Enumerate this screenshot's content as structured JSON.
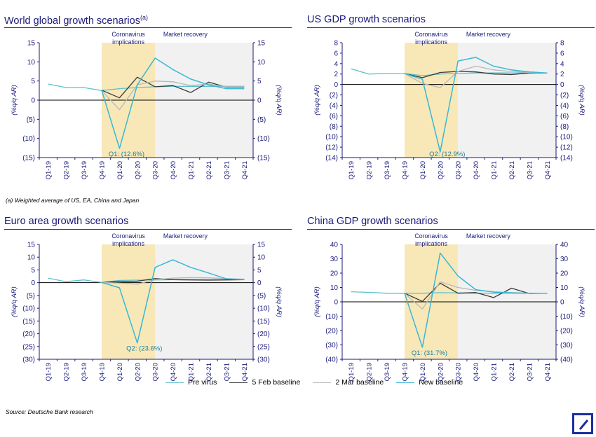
{
  "footnote_a": "(a)    Weighted average of US, EA, China and Japan",
  "source": "Source: Deutsche Bank research",
  "colors": {
    "title": "#1a1a7a",
    "axis": "#1a1a7a",
    "shade_covid": "#f8e8b8",
    "shade_recovery": "#f1f1f1",
    "pre_virus": "#5cc1cc",
    "feb5": "#3a3a3a",
    "mar2": "#b8b8b8",
    "new_baseline": "#37b8d6"
  },
  "legend": [
    {
      "label": "Pre virus",
      "color": "#5cc1cc"
    },
    {
      "label": "5 Feb baseline",
      "color": "#3a3a3a"
    },
    {
      "label": "2 Mar baseline",
      "color": "#b8b8b8"
    },
    {
      "label": "New baseline",
      "color": "#37b8d6"
    }
  ],
  "chart_data": [
    {
      "type": "line",
      "title": "World global growth scenarios",
      "title_sup": "(a)",
      "ylabel": "(%q/q AR)",
      "ylim": [
        -15,
        15
      ],
      "yticks": [
        15,
        10,
        5,
        0,
        -5,
        -10,
        -15
      ],
      "ytick_labels": [
        "15",
        "10",
        "5",
        "0",
        "(5)",
        "(10)",
        "(15)"
      ],
      "categories": [
        "Q1-19",
        "Q2-19",
        "Q3-19",
        "Q4-19",
        "Q1-20",
        "Q2-20",
        "Q3-20",
        "Q4-20",
        "Q1-21",
        "Q2-21",
        "Q3-21",
        "Q4-21"
      ],
      "shade_labels": [
        "Coronavirus\nimplications",
        "Market recovery"
      ],
      "annotation": "Q1: (12.6%)",
      "series": [
        {
          "name": "Pre virus",
          "values": [
            4.2,
            3.3,
            3.3,
            2.5,
            3.0,
            3.3,
            3.5,
            3.6,
            3.6,
            3.6,
            3.6,
            3.6
          ]
        },
        {
          "name": "5 Feb baseline",
          "values": [
            null,
            null,
            null,
            2.6,
            0.6,
            6.0,
            3.5,
            3.8,
            2.0,
            4.7,
            3.4,
            3.4
          ]
        },
        {
          "name": "2 Mar baseline",
          "values": [
            null,
            null,
            null,
            2.5,
            -2.5,
            4.0,
            5.0,
            4.8,
            3.8,
            4.2,
            3.5,
            3.5
          ]
        },
        {
          "name": "New baseline",
          "values": [
            null,
            null,
            null,
            2.6,
            -12.6,
            4.0,
            11.0,
            8.0,
            5.5,
            4.0,
            3.0,
            3.0
          ]
        }
      ]
    },
    {
      "type": "line",
      "title": "US GDP growth scenarios",
      "ylabel": "(%q/q AR)",
      "ylim": [
        -14,
        8
      ],
      "yticks": [
        8,
        6,
        4,
        2,
        0,
        -2,
        -4,
        -6,
        -8,
        -10,
        -12,
        -14
      ],
      "ytick_labels": [
        "8",
        "6",
        "4",
        "2",
        "0",
        "(2)",
        "(4)",
        "(6)",
        "(8)",
        "(10)",
        "(12)",
        "(14)"
      ],
      "categories": [
        "Q1-19",
        "Q2-19",
        "Q3-19",
        "Q4-19",
        "Q1-20",
        "Q2-20",
        "Q3-20",
        "Q4-20",
        "Q1-21",
        "Q2-21",
        "Q3-21",
        "Q4-21"
      ],
      "shade_labels": [
        "Coronavirus\nimplications",
        "Market recovery"
      ],
      "annotation": "Q2: (12.9%)",
      "series": [
        {
          "name": "Pre virus",
          "values": [
            3.0,
            2.0,
            2.1,
            2.1,
            1.7,
            2.0,
            2.1,
            2.2,
            2.2,
            2.2,
            2.2,
            2.2
          ]
        },
        {
          "name": "5 Feb baseline",
          "values": [
            null,
            null,
            null,
            2.1,
            1.3,
            2.3,
            2.5,
            2.4,
            2.0,
            1.9,
            2.2,
            2.2
          ]
        },
        {
          "name": "2 Mar baseline",
          "values": [
            null,
            null,
            null,
            2.1,
            0.2,
            -0.6,
            2.5,
            3.5,
            2.8,
            2.5,
            2.3,
            2.2
          ]
        },
        {
          "name": "New baseline",
          "values": [
            null,
            null,
            null,
            2.1,
            1.0,
            -12.9,
            4.5,
            5.2,
            3.5,
            2.8,
            2.4,
            2.2
          ]
        }
      ]
    },
    {
      "type": "line",
      "title": "Euro area growth scenarios",
      "ylabel": "(%q/q AR)",
      "ylim": [
        -30,
        15
      ],
      "yticks": [
        15,
        10,
        5,
        0,
        -5,
        -10,
        -15,
        -20,
        -25,
        -30
      ],
      "ytick_labels": [
        "15",
        "10",
        "5",
        "0",
        "(5)",
        "(10)",
        "(15)",
        "(20)",
        "(25)",
        "(30)"
      ],
      "categories": [
        "Q1-19",
        "Q2-19",
        "Q3-19",
        "Q4-19",
        "Q1-20",
        "Q2-20",
        "Q3-20",
        "Q4-20",
        "Q1-21",
        "Q2-21",
        "Q3-21",
        "Q4-21"
      ],
      "shade_labels": [
        "Coronavirus\nimplications",
        "Market recovery"
      ],
      "annotation": "Q2: (23.6%)",
      "series": [
        {
          "name": "Pre virus",
          "values": [
            1.8,
            0.4,
            1.1,
            0.1,
            0.9,
            1.0,
            1.1,
            1.2,
            1.2,
            1.2,
            1.2,
            1.2
          ]
        },
        {
          "name": "5 Feb baseline",
          "values": [
            null,
            null,
            null,
            0.1,
            0.5,
            0.6,
            1.6,
            1.2,
            1.1,
            1.0,
            1.1,
            1.2
          ]
        },
        {
          "name": "2 Mar baseline",
          "values": [
            null,
            null,
            null,
            0.1,
            -0.2,
            -0.6,
            1.2,
            1.8,
            2.0,
            1.9,
            1.6,
            1.4
          ]
        },
        {
          "name": "New baseline",
          "values": [
            null,
            null,
            null,
            0.1,
            -2.0,
            -23.6,
            6.0,
            9.0,
            6.0,
            3.8,
            1.5,
            1.2
          ]
        }
      ]
    },
    {
      "type": "line",
      "title": "China GDP growth scenarios",
      "ylabel": "(%q/q AR)",
      "ylim": [
        -40,
        40
      ],
      "yticks": [
        40,
        30,
        20,
        10,
        0,
        -10,
        -20,
        -30,
        -40
      ],
      "ytick_labels": [
        "40",
        "30",
        "20",
        "10",
        "0",
        "(10)",
        "(20)",
        "(30)",
        "(40)"
      ],
      "categories": [
        "Q1-19",
        "Q2-19",
        "Q3-19",
        "Q4-19",
        "Q1-20",
        "Q2-20",
        "Q3-20",
        "Q4-20",
        "Q1-21",
        "Q2-21",
        "Q3-21",
        "Q4-21"
      ],
      "shade_labels": [
        "Coronavirus\nimplications",
        "Market recovery"
      ],
      "annotation": "Q1: (31.7%)",
      "series": [
        {
          "name": "Pre virus",
          "values": [
            7.0,
            6.6,
            6.0,
            6.0,
            6.0,
            6.4,
            6.2,
            6.0,
            6.0,
            6.0,
            6.0,
            6.0
          ]
        },
        {
          "name": "5 Feb baseline",
          "values": [
            null,
            null,
            null,
            6.0,
            0.3,
            13.0,
            6.0,
            6.5,
            3.0,
            9.5,
            5.8,
            6.0
          ]
        },
        {
          "name": "2 Mar baseline",
          "values": [
            null,
            null,
            null,
            6.0,
            -5.0,
            14.0,
            10.0,
            8.0,
            7.0,
            6.5,
            6.0,
            6.0
          ]
        },
        {
          "name": "New baseline",
          "values": [
            null,
            null,
            null,
            6.0,
            -31.7,
            34.0,
            18.0,
            8.5,
            6.8,
            6.2,
            6.0,
            6.0
          ]
        }
      ]
    }
  ]
}
